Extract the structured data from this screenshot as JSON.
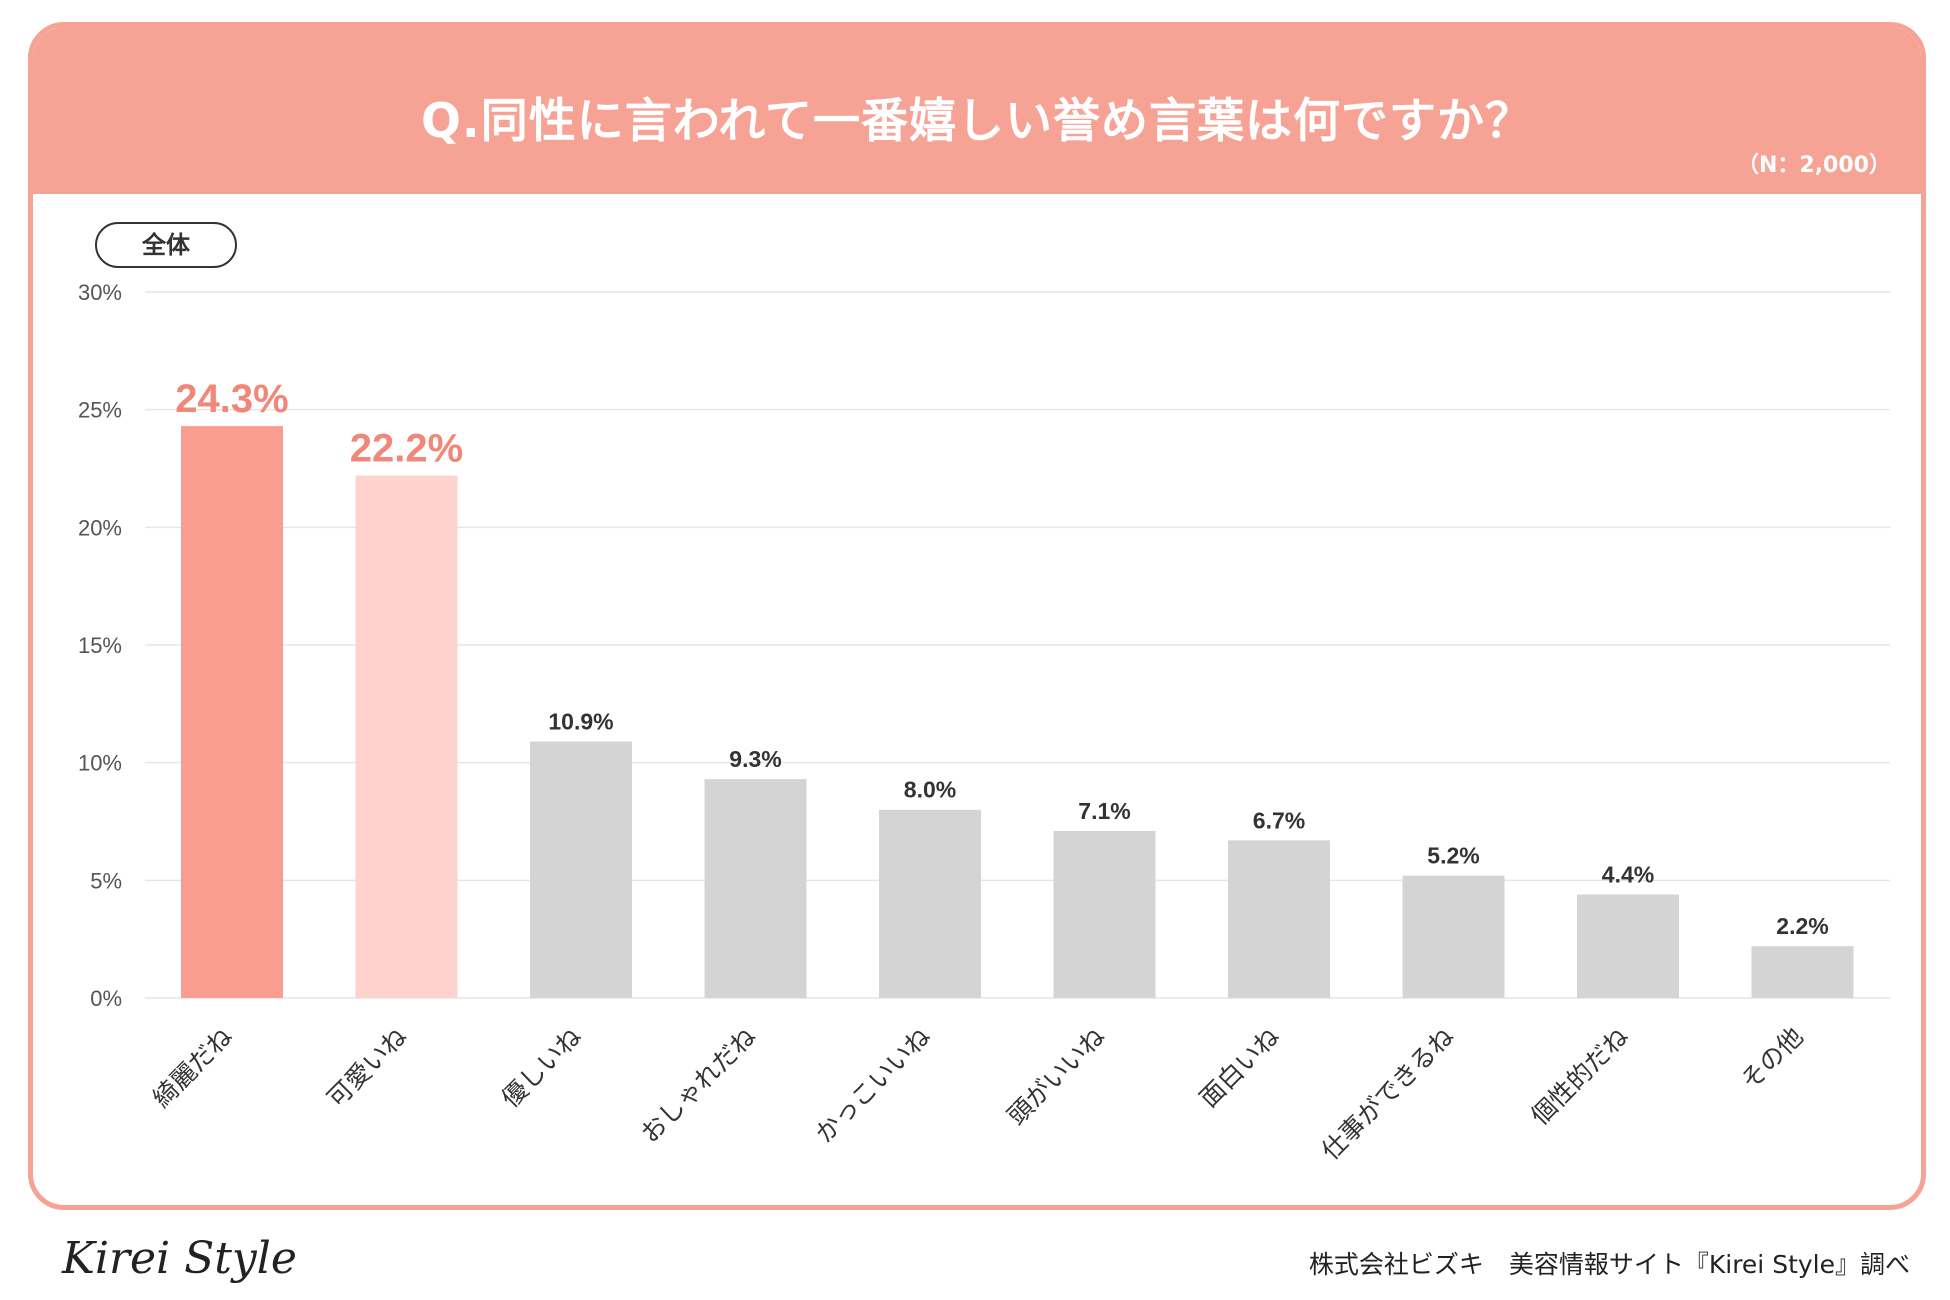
{
  "header": {
    "title": "Q.同性に言われて一番嬉しい誉め言葉は何ですか？",
    "sample": "（N：2,000）"
  },
  "segment_label": "全体",
  "footer": {
    "logo_text": "Kirei Style",
    "credit": "株式会社ビズキ　美容情報サイト『Kirei Style』調べ"
  },
  "colors": {
    "accent": "#f6a396",
    "first_bar": "#f89d90",
    "second_bar": "#fed3ce",
    "other_bar": "#d4d4d4",
    "highlight_label": "#f08778",
    "label_dark": "#333333",
    "grid": "#e6e6e6",
    "axis_text": "#555555"
  },
  "chart_data": {
    "type": "bar",
    "title": "Q.同性に言われて一番嬉しい誉め言葉は何ですか？",
    "xlabel": "",
    "ylabel": "",
    "ylim": [
      0,
      30
    ],
    "y_ticks": [
      "0%",
      "5%",
      "10%",
      "15%",
      "20%",
      "25%",
      "30%"
    ],
    "grid": true,
    "categories": [
      "綺麗だね",
      "可愛いね",
      "優しいね",
      "おしゃれだね",
      "かっこいいね",
      "頭がいいね",
      "面白いね",
      "仕事ができるね",
      "個性的だね",
      "その他"
    ],
    "values": [
      24.3,
      22.2,
      10.9,
      9.3,
      8.0,
      7.1,
      6.7,
      5.2,
      4.4,
      2.2
    ],
    "value_labels": [
      "24.3%",
      "22.2%",
      "10.9%",
      "9.3%",
      "8.0%",
      "7.1%",
      "6.7%",
      "5.2%",
      "4.4%",
      "2.2%"
    ]
  }
}
